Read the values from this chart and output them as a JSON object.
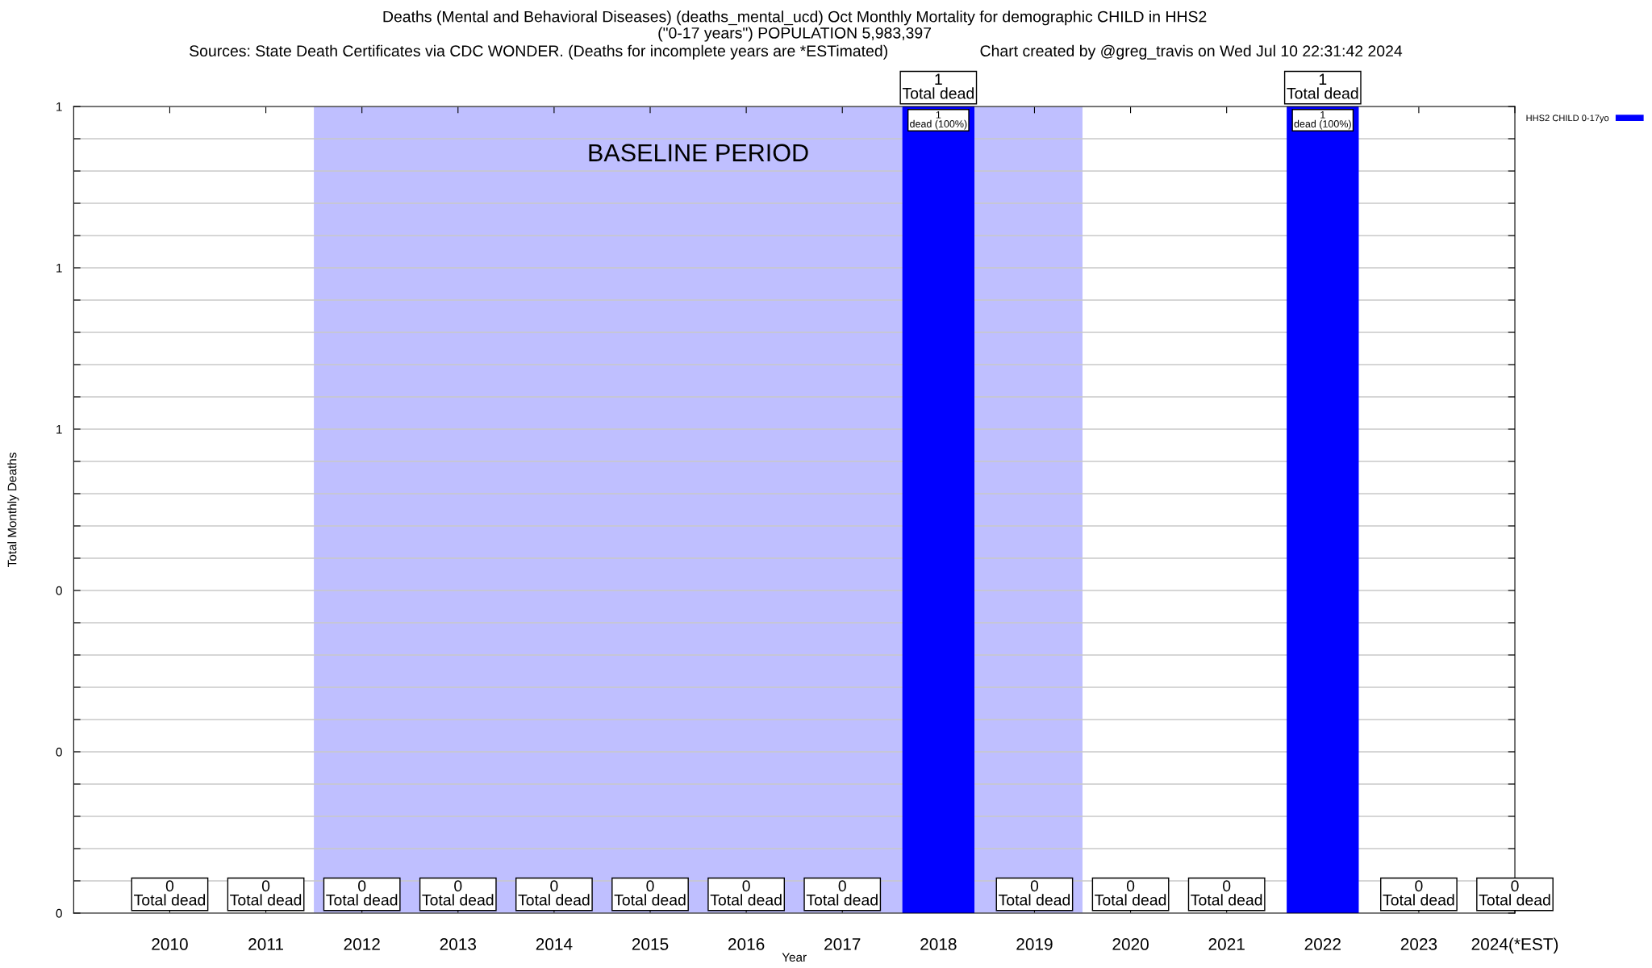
{
  "chart_data": {
    "type": "bar",
    "title": "Deaths (Mental and Behavioral Diseases) (deaths_mental_ucd) Oct Monthly Mortality for demographic CHILD in HHS2\n(\"0-17 years\") POPULATION 5,983,397",
    "subtitle": "Sources: State Death Certificates via CDC WONDER. (Deaths for incomplete years are *ESTimated)",
    "annotations": [
      "Chart created by @greg_travis on Wed Jul 10 22:31:42 2024",
      {
        "text": "1\ndead (100%)",
        "x": 2018,
        "y": 1
      },
      {
        "text": "1\ndead (100%)",
        "x": 2022,
        "y": 1
      }
    ],
    "xlabel": "Year",
    "ylabel": "Total Monthly Deaths",
    "x": [
      2010,
      2011,
      2012,
      2013,
      2014,
      2015,
      2016,
      2017,
      2018,
      2019,
      2020,
      2021,
      2022,
      2023,
      2024
    ],
    "series": [
      {
        "name": "HHS2 CHILD 0-17yo",
        "color": "#0000ff",
        "values": [
          0,
          0,
          0,
          0,
          0,
          0,
          0,
          0,
          1,
          0,
          0,
          0,
          1,
          0,
          0
        ],
        "value_labels": [
          "0\nTotal dead",
          "0\nTotal dead",
          "0\nTotal dead",
          "0\nTotal dead",
          "0\nTotal dead",
          "0\nTotal dead",
          "0\nTotal dead",
          "0\nTotal dead",
          "1\nTotal dead",
          "0\nTotal dead",
          "0\nTotal dead",
          "0\nTotal dead",
          "1\nTotal dead",
          "0\nTotal dead",
          "0\nTotal dead"
        ]
      }
    ],
    "xlim": [
      2009,
      2024
    ],
    "xticks": [
      2010,
      2011,
      2012,
      2013,
      2014,
      2015,
      2016,
      2017,
      2018,
      2019,
      2020,
      2021,
      2022,
      2023,
      {
        "value": 2024,
        "label": "2024(*EST)"
      }
    ],
    "ylim": [
      0,
      1
    ],
    "yticks": [
      {
        "value": 0,
        "label": "0"
      },
      {
        "value": 0.04,
        "label": null
      },
      {
        "value": 0.08,
        "label": null
      },
      {
        "value": 0.12,
        "label": null
      },
      {
        "value": 0.16,
        "label": null
      },
      {
        "value": 0.2,
        "label": "0"
      },
      {
        "value": 0.24,
        "label": null
      },
      {
        "value": 0.28,
        "label": null
      },
      {
        "value": 0.32,
        "label": null
      },
      {
        "value": 0.36,
        "label": null
      },
      {
        "value": 0.4,
        "label": "0"
      },
      {
        "value": 0.44,
        "label": null
      },
      {
        "value": 0.48,
        "label": null
      },
      {
        "value": 0.52,
        "label": null
      },
      {
        "value": 0.56,
        "label": null
      },
      {
        "value": 0.6,
        "label": "1"
      },
      {
        "value": 0.64,
        "label": null
      },
      {
        "value": 0.68,
        "label": null
      },
      {
        "value": 0.72,
        "label": null
      },
      {
        "value": 0.76,
        "label": null
      },
      {
        "value": 0.8,
        "label": "1"
      },
      {
        "value": 0.84,
        "label": null
      },
      {
        "value": 0.88,
        "label": null
      },
      {
        "value": 0.92,
        "label": null
      },
      {
        "value": 0.96,
        "label": null
      },
      {
        "value": 1,
        "label": "1"
      }
    ],
    "bands": [
      {
        "axis": "x",
        "from": 2011.5,
        "to": 2019.5,
        "label": "BASELINE PERIOD",
        "color": "#bfbfff"
      }
    ],
    "grid": "y",
    "legend": "top right"
  }
}
